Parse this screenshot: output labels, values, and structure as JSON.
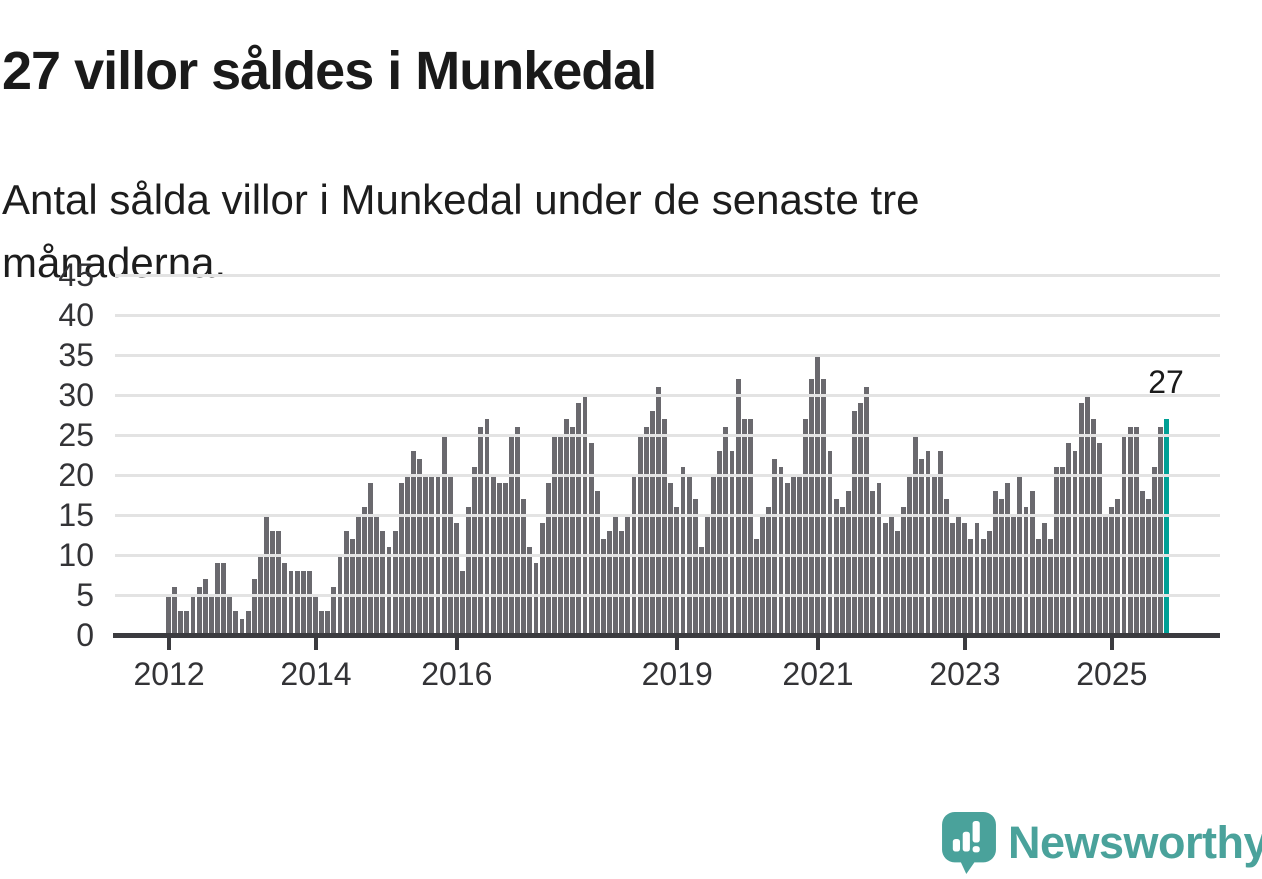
{
  "header": {
    "title": "27 villor såldes i Munkedal",
    "subtitle": "Antal sålda villor i Munkedal under de senaste tre månaderna.",
    "subtitle_lines": [
      "Antal sålda villor i Munkedal under de senaste tre",
      "månaderna."
    ]
  },
  "chart_data": {
    "type": "bar",
    "title": "27 villor såldes i Munkedal",
    "subtitle": "Antal sålda villor i Munkedal under de senaste tre månaderna.",
    "ylabel": "",
    "xlabel": "",
    "ylim": [
      0,
      45
    ],
    "grid": true,
    "x_period_start": "2012",
    "x_period_end": "2025",
    "values": [
      5,
      6,
      3,
      3,
      5,
      6,
      7,
      5,
      9,
      9,
      5,
      3,
      2,
      3,
      7,
      10,
      15,
      13,
      13,
      9,
      8,
      8,
      8,
      8,
      5,
      3,
      3,
      6,
      10,
      13,
      12,
      15,
      16,
      19,
      15,
      13,
      11,
      13,
      19,
      20,
      23,
      22,
      20,
      20,
      20,
      25,
      20,
      14,
      8,
      16,
      21,
      26,
      27,
      20,
      19,
      19,
      25,
      26,
      17,
      11,
      9,
      14,
      19,
      25,
      25,
      27,
      26,
      29,
      30,
      24,
      18,
      12,
      13,
      15,
      13,
      15,
      20,
      25,
      26,
      28,
      31,
      27,
      19,
      16,
      21,
      20,
      17,
      11,
      15,
      20,
      23,
      26,
      23,
      32,
      27,
      27,
      12,
      15,
      16,
      22,
      21,
      19,
      20,
      20,
      27,
      32,
      35,
      32,
      23,
      17,
      16,
      18,
      28,
      29,
      31,
      18,
      19,
      14,
      15,
      13,
      16,
      20,
      25,
      22,
      23,
      20,
      23,
      17,
      14,
      15,
      14,
      12,
      14,
      12,
      13,
      18,
      17,
      19,
      15,
      20,
      16,
      18,
      12,
      14,
      12,
      21,
      21,
      24,
      23,
      29,
      30,
      27,
      24,
      15,
      16,
      17,
      25,
      26,
      26,
      18,
      17,
      21,
      26,
      27
    ],
    "yticks": [
      0,
      5,
      10,
      15,
      20,
      25,
      30,
      35,
      40,
      45
    ],
    "xticks": [
      {
        "label": "2012",
        "index": 0
      },
      {
        "label": "2014",
        "index": 24
      },
      {
        "label": "2016",
        "index": 47
      },
      {
        "label": "2019",
        "index": 83
      },
      {
        "label": "2021",
        "index": 106
      },
      {
        "label": "2023",
        "index": 130
      },
      {
        "label": "2025",
        "index": 154
      }
    ],
    "last_value_label": "27",
    "bar_color": "#6a696e",
    "highlight_color": "#00a096",
    "grid_color": "#e3e3e3",
    "axis_color": "#3b3b3f",
    "legend": null
  },
  "footer": {
    "brand": "Newsworthy",
    "brand_color": "#4aa29b",
    "logo_icon": "speech-bubble-chart-icon"
  }
}
